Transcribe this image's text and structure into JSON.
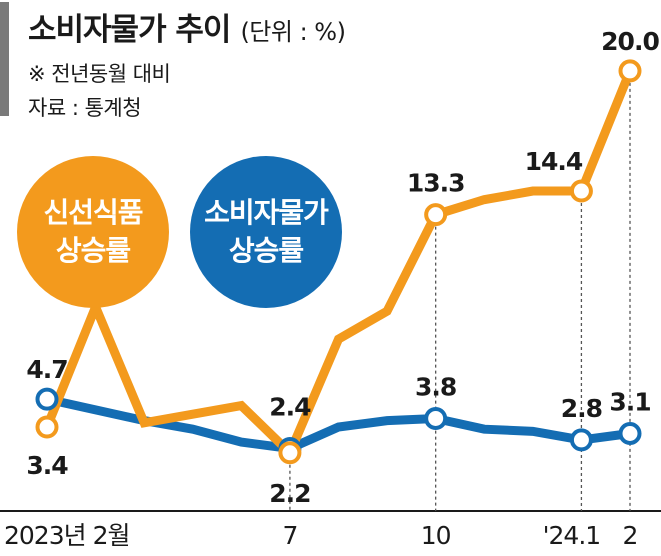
{
  "title": "소비자물가 추이",
  "unit": "(단위 : %)",
  "note": "※ 전년동월 대비",
  "source": "자료 : 통계청",
  "colors": {
    "fresh_food": "#f39a1d",
    "cpi": "#146db3",
    "axis": "#1a1a1a",
    "guide": "#555555"
  },
  "chart_data": {
    "type": "line",
    "x": [
      "2023년 2월",
      "3",
      "4",
      "5",
      "6",
      "7",
      "8",
      "9",
      "10",
      "11",
      "12",
      "'24.1",
      "2"
    ],
    "xtick_labels": [
      "2023년 2월",
      "7",
      "10",
      "'24.1",
      "2"
    ],
    "xtick_indices": [
      0,
      5,
      8,
      11,
      12
    ],
    "guide_indices": [
      5,
      8,
      11,
      12
    ],
    "ylim": [
      0,
      22
    ],
    "series": [
      {
        "name": "신선식품 상승률",
        "color": "#f39a1d",
        "values": [
          3.4,
          9.0,
          3.6,
          4.0,
          4.4,
          2.2,
          7.5,
          8.8,
          13.3,
          14.0,
          14.4,
          14.4,
          20.0
        ],
        "labels": {
          "0": "3.4",
          "5": "2.2",
          "8": "13.3",
          "11": "14.4",
          "12": "20.0"
        }
      },
      {
        "name": "소비자물가 상승률",
        "color": "#146db3",
        "values": [
          4.7,
          4.2,
          3.7,
          3.3,
          2.7,
          2.4,
          3.4,
          3.7,
          3.8,
          3.3,
          3.2,
          2.8,
          3.1
        ],
        "labels": {
          "0": "4.7",
          "5": "2.4",
          "8": "3.8",
          "11": "2.8",
          "12": "3.1"
        }
      }
    ]
  },
  "legend": [
    {
      "label": "신선식품\n상승률",
      "color": "#f39a1d"
    },
    {
      "label": "소비자물가\n상승률",
      "color": "#146db3"
    }
  ]
}
